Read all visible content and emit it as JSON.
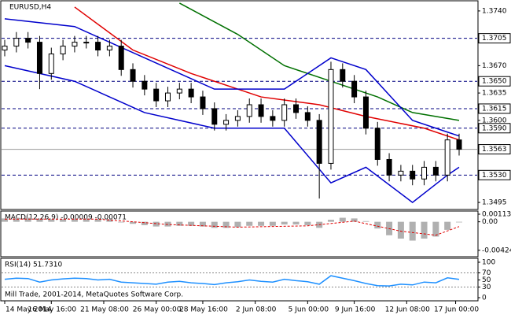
{
  "chart_data": {
    "type": "candlestick",
    "title": "EURUSD,H4",
    "footer": "Mill Trade, 2001-2014, MetaQuotes Software Corp.",
    "ylim": [
      1.3487,
      1.3754
    ],
    "yticks": [
      {
        "value": 1.374,
        "label": "1.3740"
      },
      {
        "value": 1.367,
        "label": "1.3670"
      },
      {
        "value": 1.3635,
        "label": "1.3635"
      },
      {
        "value": 1.36,
        "label": "1.3600"
      },
      {
        "value": 1.3495,
        "label": "1.3495"
      }
    ],
    "levels": [
      {
        "value": 1.3705,
        "label": "1.3705"
      },
      {
        "value": 1.365,
        "label": "1.3650"
      },
      {
        "value": 1.3615,
        "label": "1.3615"
      },
      {
        "value": 1.359,
        "label": "1.3590"
      },
      {
        "value": 1.353,
        "label": "1.3530"
      }
    ],
    "current": {
      "value": 1.3563,
      "label": "1.3563"
    },
    "xlim": [
      0,
      39
    ],
    "xticks": [
      {
        "value": 0,
        "label": "14 May 2014"
      },
      {
        "value": 4,
        "label": "16 May 16:00"
      },
      {
        "value": 8.5,
        "label": "21 May 08:00"
      },
      {
        "value": 13,
        "label": "26 May 00:00"
      },
      {
        "value": 17,
        "label": "28 May 16:00"
      },
      {
        "value": 21.5,
        "label": "2 Jun 08:00"
      },
      {
        "value": 26,
        "label": "5 Jun 00:00"
      },
      {
        "value": 30,
        "label": "9 Jun 16:00"
      },
      {
        "value": 34.5,
        "label": "12 Jun 08:00"
      },
      {
        "value": 38.7,
        "label": "17 Jun 00:00"
      }
    ],
    "open": [
      1.369,
      1.3695,
      1.3705,
      1.37,
      1.366,
      1.3685,
      1.3695,
      1.37,
      1.37,
      1.369,
      1.3695,
      1.3665,
      1.365,
      1.364,
      1.3625,
      1.3635,
      1.364,
      1.363,
      1.3615,
      1.3595,
      1.36,
      1.3605,
      1.362,
      1.3605,
      1.36,
      1.362,
      1.361,
      1.36,
      1.3545,
      1.3665,
      1.365,
      1.363,
      1.359,
      1.355,
      1.353,
      1.3535,
      1.3525,
      1.354,
      1.353,
      1.3575
    ],
    "high": [
      1.3703,
      1.3713,
      1.3713,
      1.3708,
      1.3693,
      1.3703,
      1.3708,
      1.3708,
      1.3708,
      1.3703,
      1.3703,
      1.3673,
      1.3658,
      1.3648,
      1.3643,
      1.3648,
      1.3648,
      1.3638,
      1.3623,
      1.3608,
      1.3613,
      1.3628,
      1.3628,
      1.3613,
      1.3628,
      1.3628,
      1.3618,
      1.3608,
      1.3675,
      1.3673,
      1.3658,
      1.3638,
      1.3598,
      1.3558,
      1.3543,
      1.3543,
      1.3548,
      1.3548,
      1.3583,
      1.3583
    ],
    "low": [
      1.3682,
      1.3687,
      1.3692,
      1.364,
      1.3652,
      1.3677,
      1.3687,
      1.3692,
      1.3682,
      1.3682,
      1.3657,
      1.3642,
      1.3632,
      1.3617,
      1.3617,
      1.3627,
      1.3622,
      1.3607,
      1.3587,
      1.3587,
      1.3592,
      1.3597,
      1.3597,
      1.3592,
      1.3592,
      1.3602,
      1.3592,
      1.35,
      1.3537,
      1.3642,
      1.3622,
      1.3582,
      1.3542,
      1.3522,
      1.3522,
      1.3517,
      1.3517,
      1.3522,
      1.3522,
      1.3555
    ],
    "close": [
      1.3695,
      1.3705,
      1.37,
      1.366,
      1.3685,
      1.3695,
      1.37,
      1.37,
      1.369,
      1.3695,
      1.3665,
      1.365,
      1.364,
      1.3625,
      1.3635,
      1.364,
      1.363,
      1.3615,
      1.3595,
      1.36,
      1.3605,
      1.362,
      1.3605,
      1.36,
      1.362,
      1.361,
      1.36,
      1.3545,
      1.3665,
      1.365,
      1.363,
      1.359,
      1.355,
      1.353,
      1.3535,
      1.3525,
      1.354,
      1.353,
      1.3575,
      1.3563
    ],
    "lines": [
      {
        "color": "#e00000",
        "x": [
          6,
          11,
          16,
          22,
          27,
          31,
          36,
          39
        ],
        "values": [
          1.3745,
          1.369,
          1.366,
          1.363,
          1.362,
          1.3605,
          1.359,
          1.3575
        ]
      },
      {
        "color": "#007000",
        "x": [
          15,
          20,
          24,
          28,
          32,
          35,
          39
        ],
        "values": [
          1.375,
          1.371,
          1.367,
          1.365,
          1.363,
          1.361,
          1.36
        ]
      },
      {
        "color": "#0000cc",
        "x": [
          0,
          6,
          12,
          18,
          24,
          28,
          31,
          35,
          38,
          39
        ],
        "values": [
          1.373,
          1.372,
          1.368,
          1.364,
          1.364,
          1.368,
          1.3665,
          1.36,
          1.3585,
          1.358
        ]
      },
      {
        "color": "#0000cc",
        "x": [
          0,
          6,
          12,
          18,
          24,
          28,
          31,
          35,
          38,
          39
        ],
        "values": [
          1.367,
          1.365,
          1.361,
          1.359,
          1.359,
          1.352,
          1.354,
          1.3495,
          1.353,
          1.354
        ]
      }
    ],
    "macd": {
      "label": "MACD(12,26,9) -0.00009 -0.00071",
      "ylim": [
        -0.0052,
        0.0016
      ],
      "yticks": [
        0.00113,
        {
          "value": 0,
          "label": "0.00"
        },
        -0.00424
      ],
      "values": [
        0.0005,
        0.0006,
        0.0006,
        0.0004,
        0.0004,
        0.0004,
        0.0005,
        0.0005,
        0.0004,
        0.0004,
        -0.0001,
        -0.0003,
        -0.0005,
        -0.0007,
        -0.0007,
        -0.0006,
        -0.0006,
        -0.0007,
        -0.0009,
        -0.0009,
        -0.0008,
        -0.0006,
        -0.0006,
        -0.0006,
        -0.0004,
        -0.0004,
        -0.0005,
        -0.0009,
        0.0003,
        0.0006,
        0.0005,
        0.0001,
        -0.001,
        -0.002,
        -0.0025,
        -0.0028,
        -0.0025,
        -0.0022,
        -0.0012,
        -9e-05
      ],
      "signal": {
        "color": "#e00000",
        "x": [
          0,
          8,
          14,
          20,
          26,
          30,
          34,
          37,
          39
        ],
        "values": [
          0.0004,
          0.0004,
          -0.0004,
          -0.0008,
          -0.0006,
          0.0001,
          -0.0014,
          -0.002,
          -0.00071
        ]
      }
    },
    "rsi": {
      "label": "RSI(14) 51.7310",
      "color": "#1e90ff",
      "ylim": [
        0,
        100
      ],
      "yticks": [
        0,
        30,
        50,
        70,
        100
      ],
      "values": [
        52,
        55,
        54,
        44,
        50,
        53,
        55,
        54,
        50,
        52,
        44,
        42,
        40,
        38,
        44,
        46,
        42,
        40,
        37,
        42,
        45,
        50,
        46,
        44,
        52,
        48,
        45,
        38,
        62,
        55,
        48,
        40,
        34,
        33,
        38,
        36,
        44,
        42,
        56,
        51.731
      ]
    }
  }
}
